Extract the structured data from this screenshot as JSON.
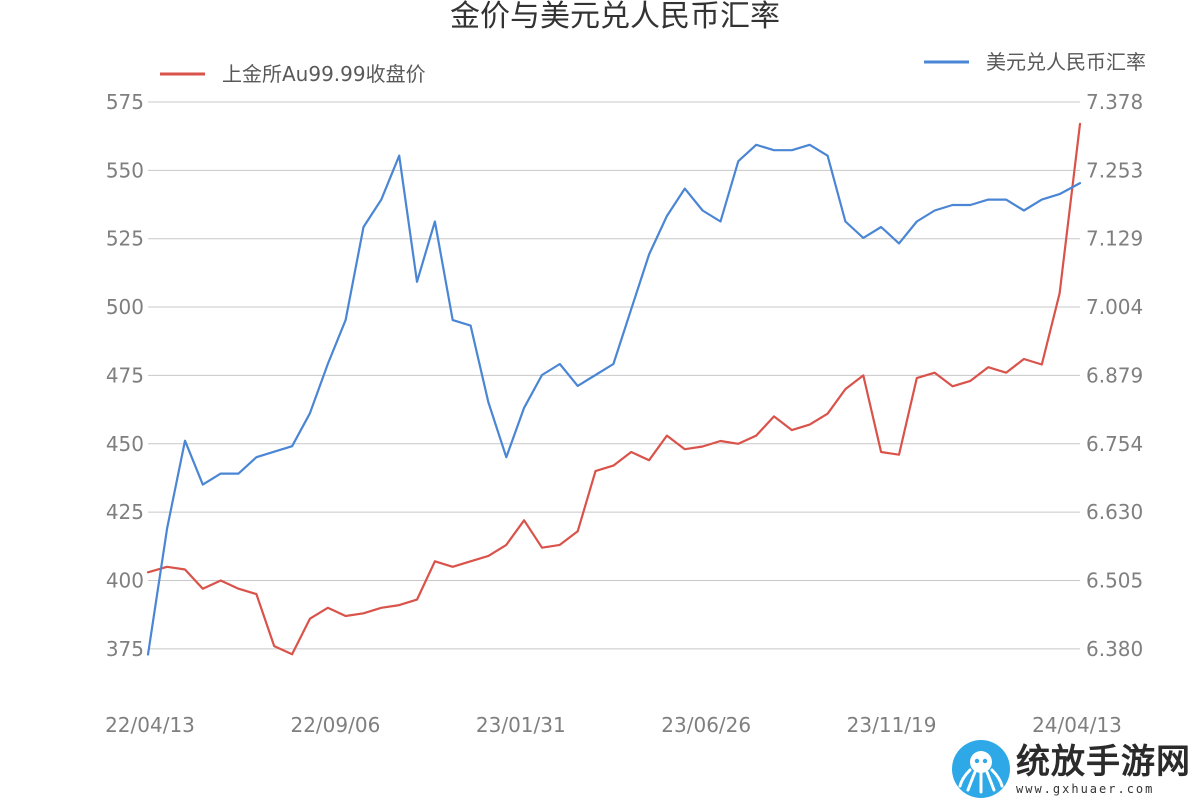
{
  "chart_data": {
    "type": "line",
    "title": "金价与美元兑人民币汇率",
    "xlabel": "",
    "x_ticks": [
      "22/04/13",
      "22/09/06",
      "23/01/31",
      "23/06/26",
      "23/11/19",
      "24/04/13"
    ],
    "x_range": [
      "2022-04-13",
      "2024-04-13"
    ],
    "left_axis": {
      "ticks": [
        "375",
        "400",
        "425",
        "450",
        "475",
        "500",
        "525",
        "550",
        "575"
      ],
      "ylim": [
        362.5,
        575
      ]
    },
    "right_axis": {
      "ticks": [
        "6.380",
        "6.505",
        "6.630",
        "6.754",
        "6.879",
        "7.004",
        "7.129",
        "7.253",
        "7.378"
      ],
      "ylim": [
        6.318,
        7.378
      ]
    },
    "grid": true,
    "legend_position": "top",
    "series": [
      {
        "name": "上金所Au99.99收盘价",
        "axis": "left",
        "color": "#d9534a",
        "x": [
          "2022-04-13",
          "2022-04-28",
          "2022-05-12",
          "2022-05-26",
          "2022-06-09",
          "2022-06-23",
          "2022-07-07",
          "2022-07-21",
          "2022-08-04",
          "2022-08-18",
          "2022-09-01",
          "2022-09-15",
          "2022-09-29",
          "2022-10-13",
          "2022-10-27",
          "2022-11-10",
          "2022-11-24",
          "2022-12-08",
          "2022-12-22",
          "2023-01-05",
          "2023-01-19",
          "2023-02-02",
          "2023-02-16",
          "2023-03-02",
          "2023-03-16",
          "2023-03-30",
          "2023-04-13",
          "2023-04-27",
          "2023-05-11",
          "2023-05-25",
          "2023-06-08",
          "2023-06-22",
          "2023-07-06",
          "2023-07-20",
          "2023-08-03",
          "2023-08-17",
          "2023-08-31",
          "2023-09-14",
          "2023-09-28",
          "2023-10-12",
          "2023-10-26",
          "2023-11-09",
          "2023-11-23",
          "2023-12-07",
          "2023-12-21",
          "2024-01-04",
          "2024-01-18",
          "2024-02-01",
          "2024-02-15",
          "2024-02-29",
          "2024-03-14",
          "2024-03-28",
          "2024-04-13"
        ],
        "values": [
          403,
          405,
          404,
          397,
          400,
          397,
          395,
          376,
          373,
          386,
          390,
          387,
          388,
          390,
          391,
          393,
          407,
          405,
          407,
          409,
          413,
          422,
          412,
          413,
          418,
          440,
          442,
          447,
          444,
          453,
          448,
          449,
          451,
          450,
          453,
          460,
          455,
          457,
          461,
          470,
          475,
          447,
          446,
          474,
          476,
          471,
          473,
          478,
          476,
          481,
          479,
          505,
          567
        ]
      },
      {
        "name": "美元兑人民币汇率",
        "axis": "right",
        "color": "#4a86d4",
        "x": [
          "2022-04-13",
          "2022-04-28",
          "2022-05-12",
          "2022-05-26",
          "2022-06-09",
          "2022-06-23",
          "2022-07-07",
          "2022-07-21",
          "2022-08-04",
          "2022-08-18",
          "2022-09-01",
          "2022-09-15",
          "2022-09-29",
          "2022-10-13",
          "2022-10-27",
          "2022-11-10",
          "2022-11-24",
          "2022-12-08",
          "2022-12-22",
          "2023-01-05",
          "2023-01-19",
          "2023-02-02",
          "2023-02-16",
          "2023-03-02",
          "2023-03-16",
          "2023-03-30",
          "2023-04-13",
          "2023-04-27",
          "2023-05-11",
          "2023-05-25",
          "2023-06-08",
          "2023-06-22",
          "2023-07-06",
          "2023-07-20",
          "2023-08-03",
          "2023-08-17",
          "2023-08-31",
          "2023-09-14",
          "2023-09-28",
          "2023-10-12",
          "2023-10-26",
          "2023-11-09",
          "2023-11-23",
          "2023-12-07",
          "2023-12-21",
          "2024-01-04",
          "2024-01-18",
          "2024-02-01",
          "2024-02-15",
          "2024-02-29",
          "2024-03-14",
          "2024-03-28",
          "2024-04-13"
        ],
        "values": [
          6.37,
          6.6,
          6.76,
          6.68,
          6.7,
          6.7,
          6.73,
          6.74,
          6.75,
          6.81,
          6.9,
          6.98,
          7.15,
          7.2,
          7.28,
          7.05,
          7.16,
          6.98,
          6.97,
          6.83,
          6.73,
          6.82,
          6.88,
          6.9,
          6.86,
          6.88,
          6.9,
          7.0,
          7.1,
          7.17,
          7.22,
          7.18,
          7.16,
          7.27,
          7.3,
          7.29,
          7.29,
          7.3,
          7.28,
          7.16,
          7.13,
          7.15,
          7.12,
          7.16,
          7.18,
          7.19,
          7.19,
          7.2,
          7.2,
          7.18,
          7.2,
          7.21,
          7.23
        ]
      }
    ]
  },
  "watermark": {
    "name": "统放手游网",
    "url": "www.gxhuaer.com"
  },
  "colors": {
    "gold": "#d9534a",
    "fx": "#4a86d4",
    "grid": "#c8c8c8",
    "tick": "#7f7f7f"
  }
}
